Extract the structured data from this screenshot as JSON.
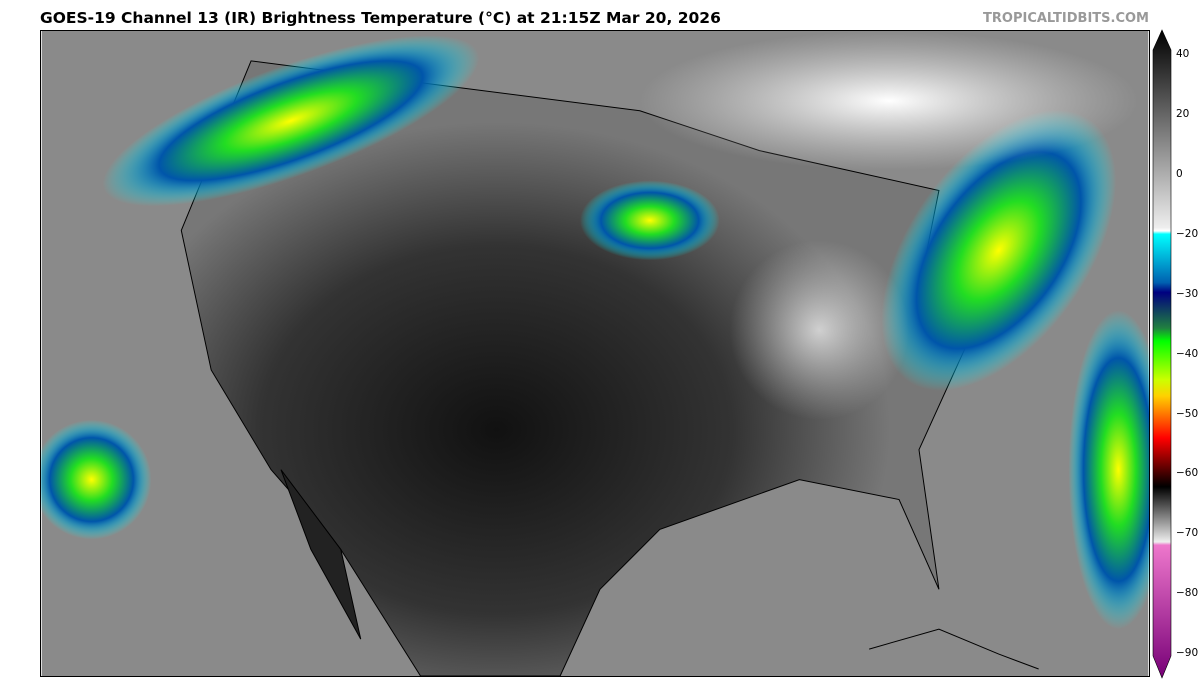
{
  "title": "GOES-19 Channel 13 (IR) Brightness Temperature (°C) at 21:15Z Mar 20, 2026",
  "brand": "TROPICALTIDBITS.COM",
  "colorbar": {
    "ticks": [
      "40",
      "20",
      "0",
      "−20",
      "−30",
      "−40",
      "−50",
      "−60",
      "−70",
      "−80",
      "−90"
    ],
    "min": -90,
    "max": 40,
    "colors": {
      "warm": "#000000",
      "neutral": "#ffffff",
      "cyan": "#00ffff",
      "navy": "#000080",
      "green": "#00ff00",
      "yellow": "#ffff00",
      "red": "#ff0000",
      "magenta": "#ee66cc",
      "purple": "#770077"
    }
  }
}
